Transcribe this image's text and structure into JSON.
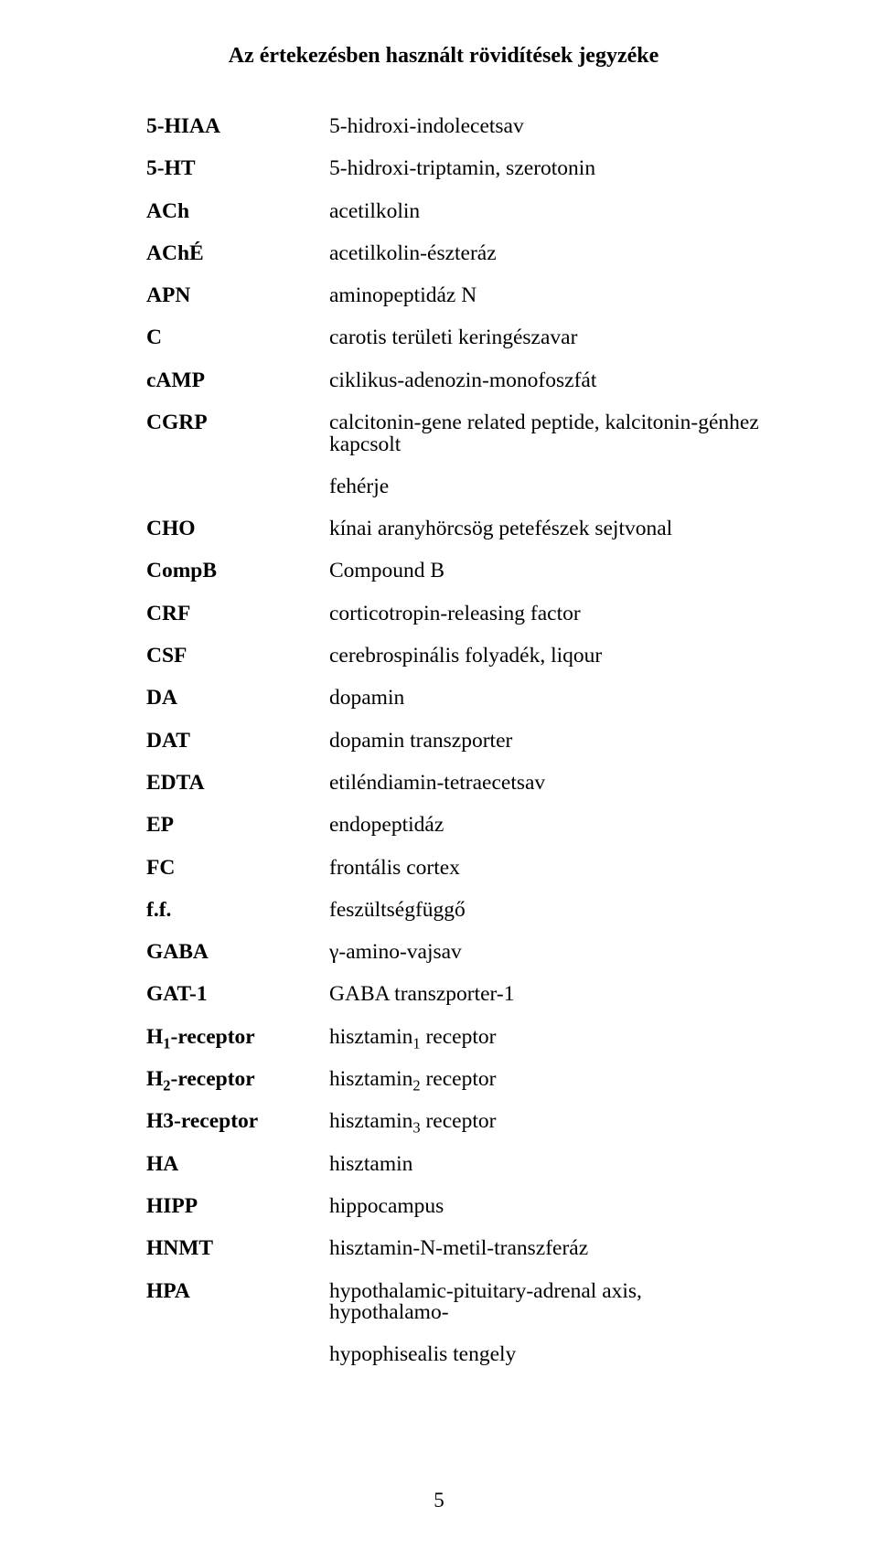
{
  "title": "Az értekezésben használt rövidítések jegyzéke",
  "page_number": "5",
  "colors": {
    "background": "#ffffff",
    "text": "#000000"
  },
  "typography": {
    "font_family": "Times New Roman",
    "title_fontsize": 24,
    "body_fontsize": 23.5,
    "title_weight": "bold",
    "abbr_weight": "bold"
  },
  "rows": [
    {
      "abbr": "5-HIAA",
      "def": "5-hidroxi-indolecetsav"
    },
    {
      "abbr": "5-HT",
      "def": "5-hidroxi-triptamin, szerotonin"
    },
    {
      "abbr": "ACh",
      "def": "acetilkolin"
    },
    {
      "abbr": "AChÉ",
      "def": "acetilkolin-észteráz"
    },
    {
      "abbr": "APN",
      "def": "aminopeptidáz N"
    },
    {
      "abbr": "C",
      "def": "carotis területi keringészavar"
    },
    {
      "abbr": "cAMP",
      "def": "ciklikus-adenozin-monofoszfát"
    },
    {
      "abbr": "CGRP",
      "def": "calcitonin-gene related peptide, kalcitonin-génhez kapcsolt"
    },
    {
      "abbr": "",
      "def": "fehérje",
      "indent": true
    },
    {
      "abbr": "CHO",
      "def": "kínai aranyhörcsög petefészek sejtvonal"
    },
    {
      "abbr": "CompB",
      "def": "Compound B"
    },
    {
      "abbr": "CRF",
      "def": "corticotropin-releasing factor"
    },
    {
      "abbr": "CSF",
      "def": "cerebrospinális folyadék, liqour"
    },
    {
      "abbr": "DA",
      "def": "dopamin"
    },
    {
      "abbr": "DAT",
      "def": "dopamin transzporter"
    },
    {
      "abbr": "EDTA",
      "def": "etiléndiamin-tetraecetsav"
    },
    {
      "abbr": "EP",
      "def": "endopeptidáz"
    },
    {
      "abbr": "FC",
      "def": "frontális cortex"
    },
    {
      "abbr": "f.f.",
      "def": "feszültségfüggő"
    },
    {
      "abbr": "GABA",
      "def": "γ-amino-vajsav"
    },
    {
      "abbr": "GAT-1",
      "def": "GABA transzporter-1"
    },
    {
      "abbr": "H{sub}1{/sub}-receptor",
      "def": "hisztamin{sub}1{/sub} receptor"
    },
    {
      "abbr": "H{sub}2{/sub}-receptor",
      "def": "hisztamin{sub}2{/sub} receptor"
    },
    {
      "abbr": "H3-receptor",
      "def": "hisztamin{sub}3{/sub} receptor"
    },
    {
      "abbr": "HA",
      "def": "hisztamin"
    },
    {
      "abbr": "HIPP",
      "def": "hippocampus"
    },
    {
      "abbr": "HNMT",
      "def": "hisztamin-N-metil-transzferáz"
    },
    {
      "abbr": "HPA",
      "def": "hypothalamic-pituitary-adrenal axis, hypothalamo-"
    },
    {
      "abbr": "",
      "def": "hypophisealis tengely",
      "indent": true
    }
  ]
}
